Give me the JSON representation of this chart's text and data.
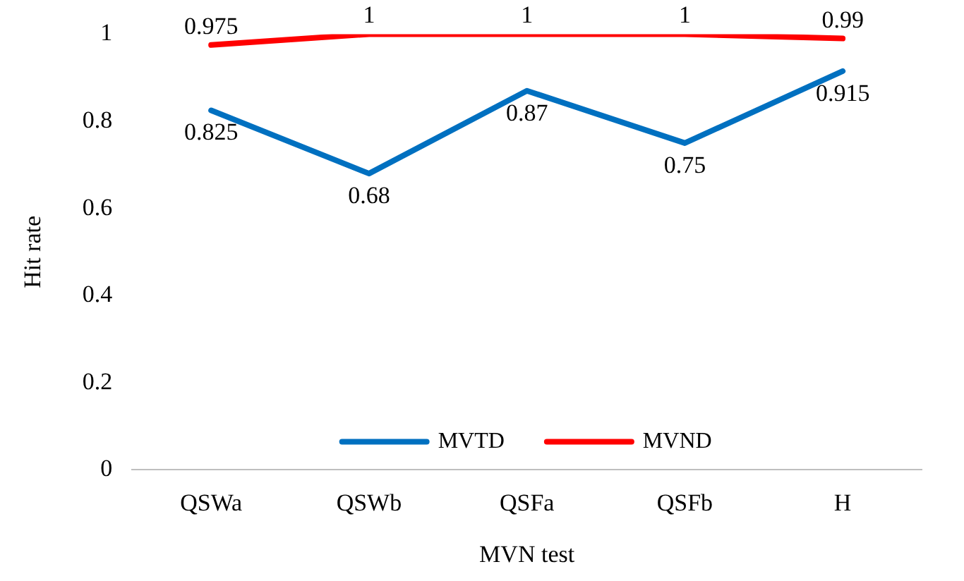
{
  "chart_data": {
    "type": "line",
    "xlabel": "MVN test",
    "ylabel": "Hit rate",
    "categories": [
      "QSWa",
      "QSWb",
      "QSFa",
      "QSFb",
      "H"
    ],
    "series": [
      {
        "name": "MVTD",
        "color": "#0070c0",
        "values": [
          0.825,
          0.68,
          0.87,
          0.75,
          0.915
        ]
      },
      {
        "name": "MVND",
        "color": "#ff0000",
        "values": [
          0.975,
          1,
          1,
          1,
          0.99
        ]
      }
    ],
    "ylim": [
      0,
      1
    ],
    "yticks": [
      0,
      0.2,
      0.4,
      0.6,
      0.8,
      1
    ],
    "grid": false,
    "legend": "bottom",
    "marker": "none",
    "line_style": "solid",
    "data_labels": true
  }
}
